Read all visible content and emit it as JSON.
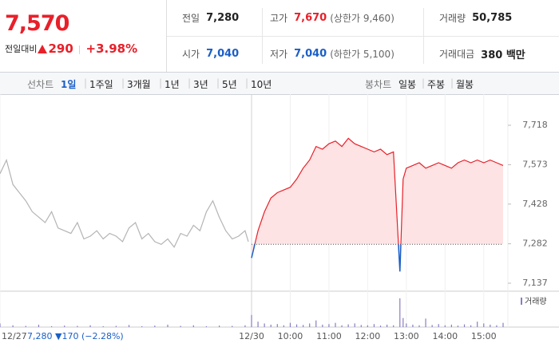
{
  "header": {
    "price": "7,570",
    "change_label": "전일대비",
    "change": "290",
    "change_pct": "+3.98%",
    "color": "#e8202a",
    "stats": [
      {
        "label": "전일",
        "value": "7,280",
        "color": "#222222"
      },
      {
        "label": "고가",
        "value": "7,670",
        "note": "(상한가 9,460)",
        "color": "#e8202a"
      },
      {
        "label": "거래량",
        "value": "50,785",
        "color": "#222222"
      },
      {
        "label": "시가",
        "value": "7,040",
        "color": "#1a5fc8"
      },
      {
        "label": "저가",
        "value": "7,040",
        "note": "(하한가 5,100)",
        "color": "#1a5fc8"
      },
      {
        "label": "거래대금",
        "value": "380 백만",
        "color": "#222222"
      }
    ]
  },
  "tabs": {
    "line_label": "선차트",
    "line": [
      "1일",
      "1주일",
      "3개월",
      "1년",
      "3년",
      "5년",
      "10년"
    ],
    "line_selected": 0,
    "candle_label": "봉차트",
    "candle": [
      "일봉",
      "주봉",
      "월봉"
    ]
  },
  "chart_data": {
    "type": "line",
    "ylim": [
      7137,
      7718
    ],
    "yticks": [
      {
        "value": 7718,
        "label": "7,718"
      },
      {
        "value": 7573,
        "label": "7,573"
      },
      {
        "value": 7428,
        "label": "7,428"
      },
      {
        "value": 7282,
        "label": "7,282"
      },
      {
        "value": 7137,
        "label": "7,137"
      }
    ],
    "xlim": [
      0,
      780
    ],
    "xticks": [
      {
        "value": 0,
        "label": "12/27"
      },
      {
        "value": 390,
        "label": "12/30"
      },
      {
        "value": 450,
        "label": "10:00"
      },
      {
        "value": 510,
        "label": "11:00"
      },
      {
        "value": 570,
        "label": "12:00"
      },
      {
        "value": 630,
        "label": "13:00"
      },
      {
        "value": 690,
        "label": "14:00"
      },
      {
        "value": 750,
        "label": "15:00"
      }
    ],
    "prev_summary": "7,280 ▼170 (−2.28%)",
    "ref_value": 7280,
    "series": [
      {
        "color": "#b4b4b4",
        "x": [
          0,
          10,
          20,
          30,
          40,
          50,
          60,
          70,
          80,
          90,
          100,
          110,
          120,
          130,
          140,
          150,
          160,
          170,
          180,
          190,
          200,
          210,
          220,
          230,
          240,
          250,
          260,
          270,
          280,
          290,
          300,
          310,
          320,
          330,
          340,
          350,
          360,
          370,
          380,
          385
        ],
        "values": [
          7540,
          7590,
          7500,
          7470,
          7440,
          7400,
          7380,
          7360,
          7400,
          7340,
          7330,
          7320,
          7360,
          7300,
          7310,
          7330,
          7300,
          7320,
          7310,
          7290,
          7340,
          7360,
          7300,
          7320,
          7290,
          7280,
          7300,
          7270,
          7320,
          7310,
          7350,
          7330,
          7400,
          7440,
          7380,
          7330,
          7300,
          7310,
          7330,
          7290
        ]
      },
      {
        "color": "#e8202a",
        "below_color": "#1a5fc8",
        "fill": "#fde3e3",
        "x": [
          390,
          400,
          410,
          420,
          430,
          440,
          450,
          460,
          470,
          480,
          490,
          500,
          510,
          520,
          530,
          540,
          550,
          560,
          570,
          580,
          590,
          600,
          610,
          620,
          625,
          630,
          640,
          650,
          660,
          670,
          680,
          690,
          700,
          710,
          720,
          730,
          740,
          750,
          760,
          770,
          780
        ],
        "values": [
          7230,
          7330,
          7400,
          7450,
          7470,
          7480,
          7490,
          7520,
          7560,
          7590,
          7640,
          7630,
          7650,
          7660,
          7640,
          7670,
          7650,
          7640,
          7630,
          7620,
          7630,
          7610,
          7620,
          7180,
          7520,
          7560,
          7570,
          7580,
          7560,
          7570,
          7580,
          7570,
          7560,
          7580,
          7590,
          7580,
          7590,
          7580,
          7590,
          7580,
          7570
        ]
      }
    ],
    "volume": {
      "name": "거래량",
      "color": "#8a7cc4",
      "ylim": [
        0,
        100
      ],
      "x": [
        0,
        20,
        40,
        60,
        80,
        100,
        120,
        140,
        160,
        180,
        200,
        220,
        240,
        260,
        280,
        300,
        320,
        340,
        360,
        380,
        390,
        400,
        410,
        420,
        430,
        440,
        450,
        460,
        470,
        480,
        490,
        500,
        510,
        520,
        530,
        540,
        550,
        560,
        570,
        580,
        590,
        600,
        610,
        620,
        625,
        630,
        640,
        650,
        660,
        670,
        680,
        690,
        700,
        710,
        720,
        730,
        740,
        750,
        760,
        770,
        780
      ],
      "values": [
        12,
        6,
        4,
        8,
        3,
        5,
        4,
        6,
        3,
        4,
        7,
        3,
        5,
        8,
        4,
        6,
        3,
        5,
        4,
        6,
        40,
        18,
        12,
        8,
        10,
        6,
        14,
        9,
        7,
        12,
        22,
        8,
        10,
        14,
        6,
        9,
        12,
        7,
        6,
        10,
        5,
        8,
        6,
        95,
        30,
        12,
        8,
        6,
        28,
        7,
        10,
        6,
        8,
        5,
        9,
        6,
        18,
        12,
        8,
        6,
        14
      ]
    }
  }
}
